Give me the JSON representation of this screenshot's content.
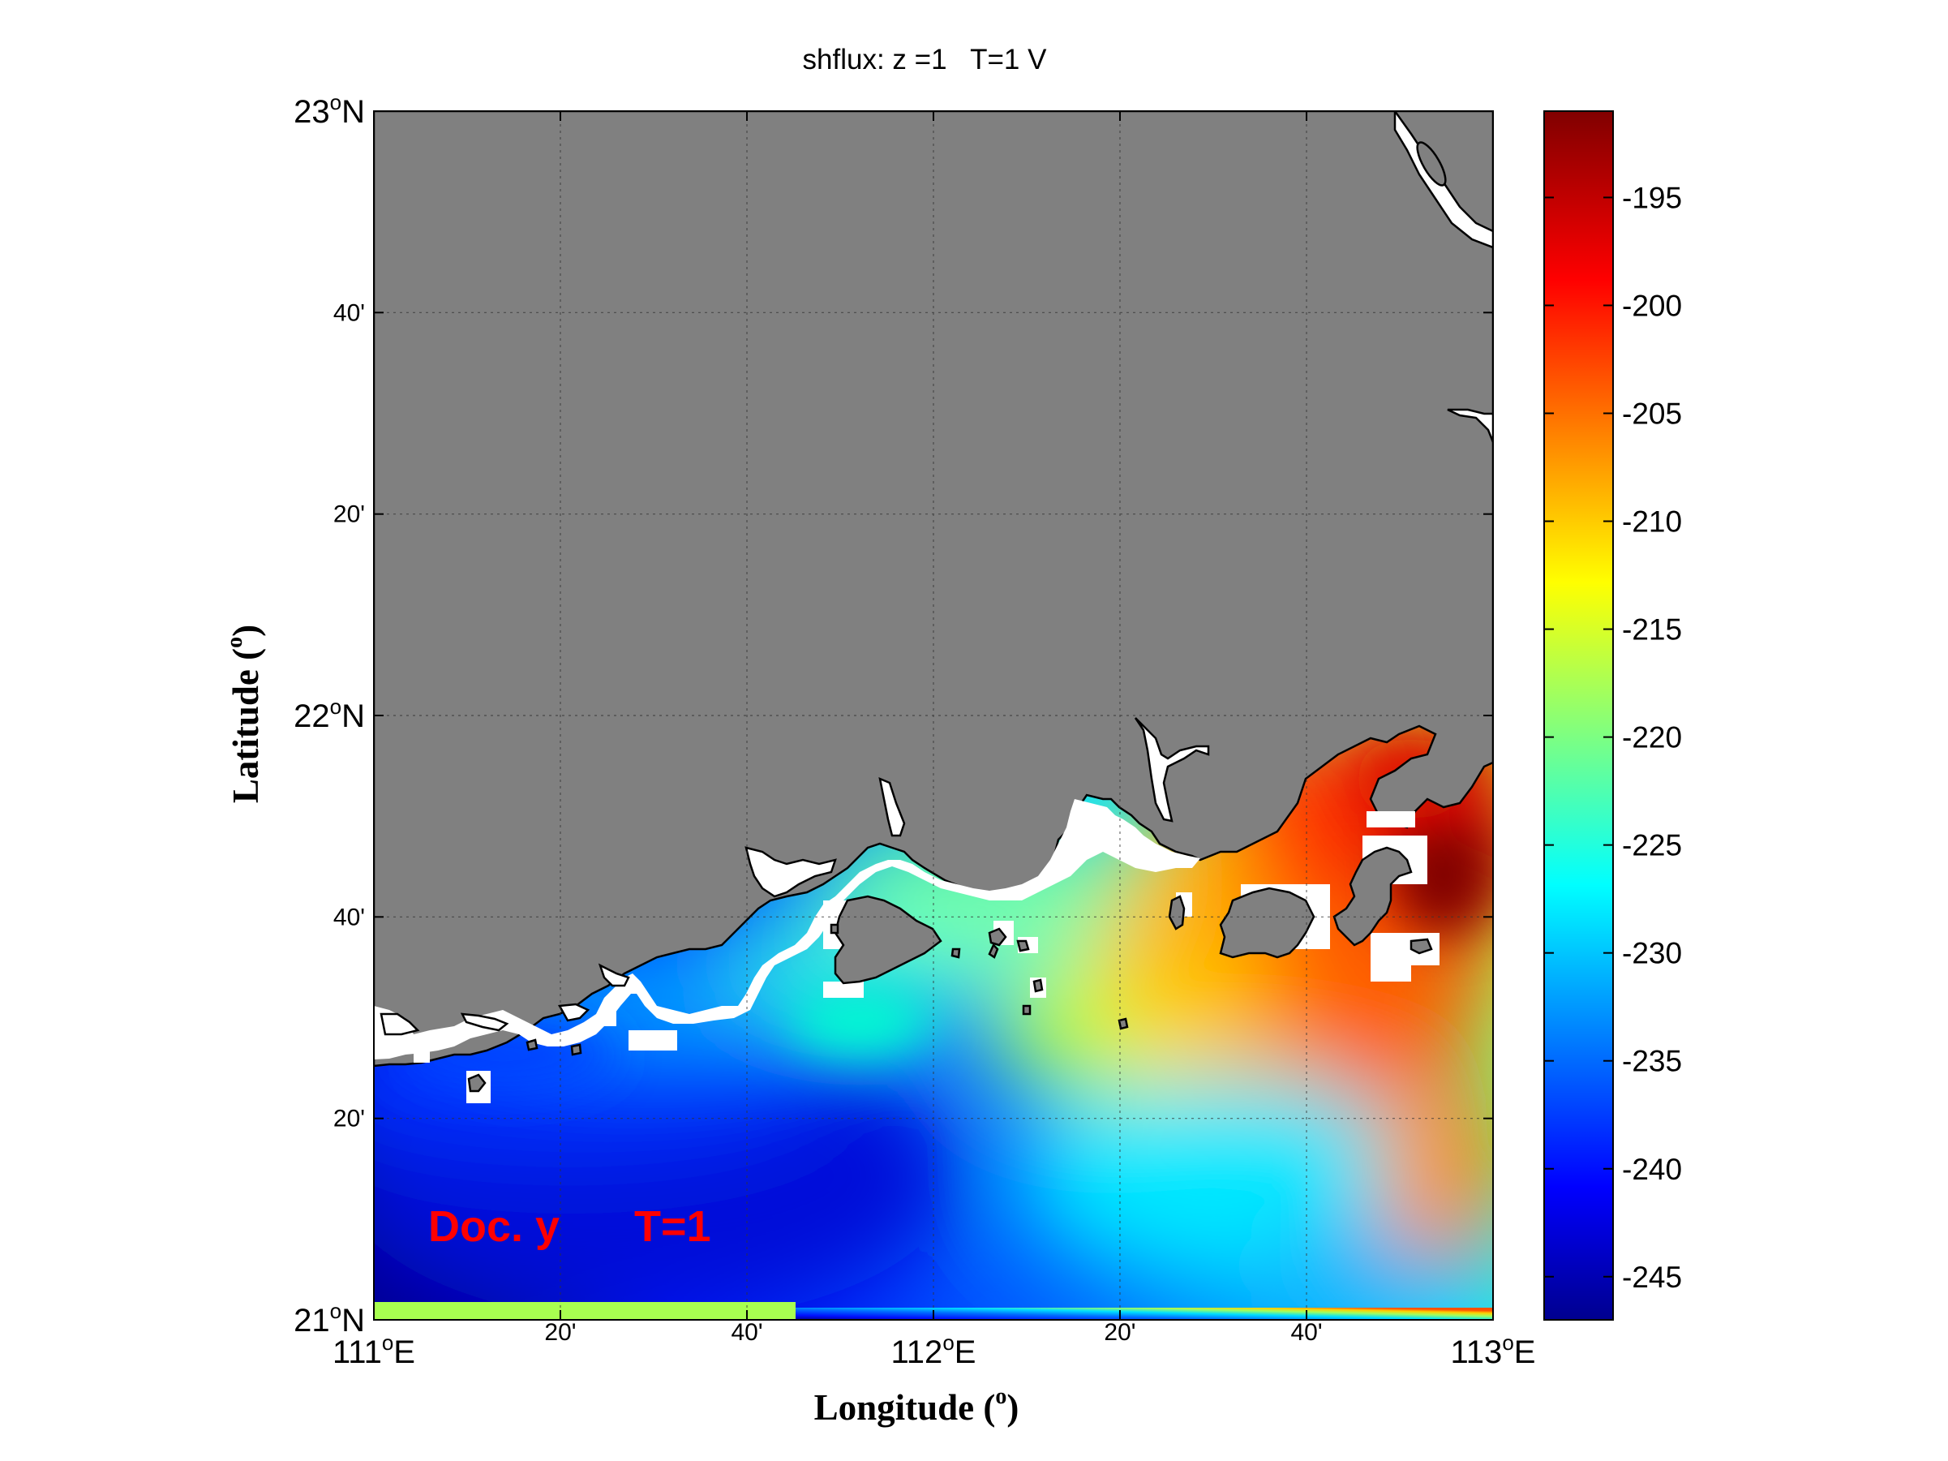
{
  "title": "shflux: z =1   T=1 V",
  "axes": {
    "xlabel": "Longitude (",
    "xlabel_sup": "o",
    "xlabel_close": ")",
    "ylabel": "Latitude (",
    "ylabel_sup": "o",
    "ylabel_close": ")",
    "x_ticks": [
      {
        "value": 111.0,
        "main": "111",
        "sup": "o",
        "suffix": "E",
        "major": true
      },
      {
        "value": 111.3333,
        "main": "20'",
        "major": false
      },
      {
        "value": 111.6667,
        "main": "40'",
        "major": false
      },
      {
        "value": 112.0,
        "main": "112",
        "sup": "o",
        "suffix": "E",
        "major": true
      },
      {
        "value": 112.3333,
        "main": "20'",
        "major": false
      },
      {
        "value": 112.6667,
        "main": "40'",
        "major": false
      },
      {
        "value": 113.0,
        "main": "113",
        "sup": "o",
        "suffix": "E",
        "major": true
      }
    ],
    "y_ticks": [
      {
        "value": 21.0,
        "main": "21",
        "sup": "o",
        "suffix": "N",
        "major": true
      },
      {
        "value": 21.3333,
        "main": "20'",
        "major": false
      },
      {
        "value": 21.6667,
        "main": "40'",
        "major": false
      },
      {
        "value": 22.0,
        "main": "22",
        "sup": "o",
        "suffix": "N",
        "major": true
      },
      {
        "value": 22.3333,
        "main": "20'",
        "major": false
      },
      {
        "value": 22.6667,
        "main": "40'",
        "major": false
      },
      {
        "value": 23.0,
        "main": "23",
        "sup": "o",
        "suffix": "N",
        "major": true
      }
    ],
    "xlim": [
      111,
      113
    ],
    "ylim": [
      21,
      23
    ],
    "grid": true
  },
  "annotation": {
    "left_text": "Doc. y",
    "right_text": "T=1",
    "color": "#ff0000"
  },
  "colorbar": {
    "colormap": "jet",
    "range": [
      -247,
      -191
    ],
    "ticks": [
      -195,
      -200,
      -205,
      -210,
      -215,
      -220,
      -225,
      -230,
      -235,
      -240,
      -245
    ],
    "tick_labels": [
      "-195",
      "-200",
      "-205",
      "-210",
      "-215",
      "-220",
      "-225",
      "-230",
      "-235",
      "-240",
      "-245"
    ]
  },
  "colors": {
    "land": "#808080",
    "mask": "#ffffff",
    "grid": "#333333"
  },
  "chart_data": {
    "type": "heatmap",
    "variable": "shflux",
    "title": "shflux: z =1   T=1 V",
    "xlabel": "Longitude (o)",
    "ylabel": "Latitude (o)",
    "xlim": [
      111,
      113
    ],
    "ylim": [
      21,
      23
    ],
    "value_range": [
      -247,
      -191
    ],
    "sample_points": [
      {
        "lon": 111.05,
        "lat": 21.1,
        "value": -246
      },
      {
        "lon": 111.5,
        "lat": 21.3,
        "value": -240
      },
      {
        "lon": 111.5,
        "lat": 21.5,
        "value": -232
      },
      {
        "lon": 111.9,
        "lat": 21.6,
        "value": -226
      },
      {
        "lon": 112.2,
        "lat": 21.5,
        "value": -218
      },
      {
        "lon": 112.5,
        "lat": 21.5,
        "value": -213
      },
      {
        "lon": 112.6,
        "lat": 21.5,
        "value": -208
      },
      {
        "lon": 112.85,
        "lat": 21.35,
        "value": -208
      },
      {
        "lon": 112.9,
        "lat": 21.7,
        "value": -200
      },
      {
        "lon": 112.93,
        "lat": 21.7,
        "value": -192
      },
      {
        "lon": 112.4,
        "lat": 21.78,
        "value": -213
      },
      {
        "lon": 112.8,
        "lat": 21.9,
        "value": -200
      },
      {
        "lon": 112.9,
        "lat": 21.05,
        "value": -226
      },
      {
        "lon": 112.5,
        "lat": 21.2,
        "value": -226
      }
    ]
  }
}
